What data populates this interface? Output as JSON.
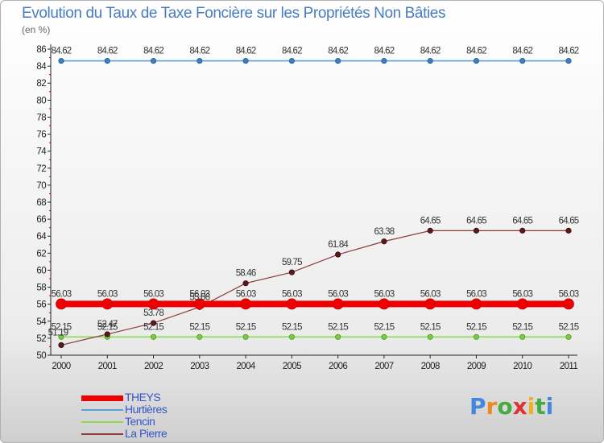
{
  "title": "Evolution du Taux de Taxe Foncière sur les Propriétés Non Bâties",
  "unit_label": "(en %)",
  "logo": {
    "text": "Proxiti"
  },
  "chart_data": {
    "type": "line",
    "title": "Evolution du Taux de Taxe Foncière sur les Propriétés Non Bâties",
    "ylabel": "(en %)",
    "xlabel": "",
    "ylim": [
      50,
      86
    ],
    "yticks": [
      50,
      52,
      54,
      56,
      58,
      60,
      62,
      64,
      66,
      68,
      70,
      72,
      74,
      76,
      78,
      80,
      82,
      84,
      86
    ],
    "categories": [
      "2000",
      "2001",
      "2002",
      "2003",
      "2004",
      "2005",
      "2006",
      "2007",
      "2008",
      "2009",
      "2010",
      "2011"
    ],
    "legend_position": "bottom-left",
    "series": [
      {
        "name": "THEYS",
        "color": "#ee0000",
        "values": [
          56.03,
          56.03,
          56.03,
          56.03,
          56.03,
          56.03,
          56.03,
          56.03,
          56.03,
          56.03,
          56.03,
          56.03
        ],
        "labels": [
          "56.03",
          "56.03",
          "56.03",
          "56.03",
          "56.03",
          "56.03",
          "56.03",
          "56.03",
          "56.03",
          "56.03",
          "56.03",
          "56.03"
        ]
      },
      {
        "name": "Hurtières",
        "color": "#5aa0d8",
        "values": [
          84.62,
          84.62,
          84.62,
          84.62,
          84.62,
          84.62,
          84.62,
          84.62,
          84.62,
          84.62,
          84.62,
          84.62
        ],
        "labels": [
          "84.62",
          "84.62",
          "84.62",
          "84.62",
          "84.62",
          "84.62",
          "84.62",
          "84.62",
          "84.62",
          "84.62",
          "84.62",
          "84.62"
        ]
      },
      {
        "name": "Tencin",
        "color": "#88dd55",
        "values": [
          52.15,
          52.15,
          52.15,
          52.15,
          52.15,
          52.15,
          52.15,
          52.15,
          52.15,
          52.15,
          52.15,
          52.15
        ],
        "labels": [
          "52.15",
          "52.15",
          "52.15",
          "52.15",
          "52.15",
          "52.15",
          "52.15",
          "52.15",
          "52.15",
          "52.15",
          "52.15",
          "52.15"
        ]
      },
      {
        "name": "La Pierre",
        "color": "#8b3a3a",
        "values": [
          51.19,
          52.47,
          53.78,
          55.66,
          58.46,
          59.75,
          61.84,
          63.38,
          64.65,
          64.65,
          64.65,
          64.65
        ],
        "labels": [
          "51.19",
          "52.47",
          "53.78",
          "55.66",
          "58.46",
          "59.75",
          "61.84",
          "63.38",
          "64.65",
          "64.65",
          "64.65",
          "64.65"
        ]
      }
    ]
  }
}
